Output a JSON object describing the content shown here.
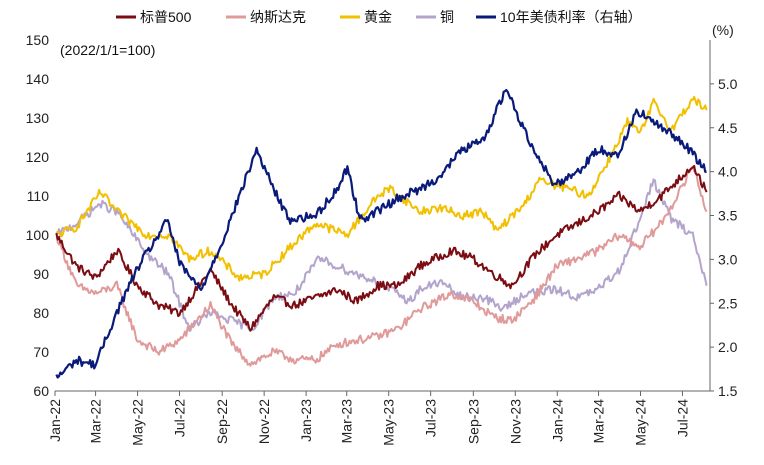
{
  "chart_data": {
    "type": "line",
    "title": "",
    "annotation": "(2022/1/1=100)",
    "y2_unit_label": "(%)",
    "x_ticks": [
      "Jan-22",
      "Mar-22",
      "May-22",
      "Jul-22",
      "Sep-22",
      "Nov-22",
      "Jan-23",
      "Mar-23",
      "May-23",
      "Jul-23",
      "Sep-23",
      "Nov-23",
      "Jan-24",
      "Mar-24",
      "May-24",
      "Jul-24"
    ],
    "y_left": {
      "min": 60,
      "max": 150,
      "ticks": [
        60,
        70,
        80,
        90,
        100,
        110,
        120,
        130,
        140,
        150
      ]
    },
    "y_right": {
      "min": 1.5,
      "max": 5.5,
      "ticks": [
        "1.5",
        "2.0",
        "2.5",
        "3.0",
        "3.5",
        "4.0",
        "4.5",
        "5.0"
      ]
    },
    "grid": false,
    "legend_position": "top",
    "series": [
      {
        "name": "标普500",
        "axis": "left",
        "color": "#7b0c12",
        "x": [
          "2022-01-03",
          "2022-02-01",
          "2022-03-01",
          "2022-04-01",
          "2022-05-01",
          "2022-06-01",
          "2022-07-01",
          "2022-08-15",
          "2022-09-15",
          "2022-10-12",
          "2022-11-15",
          "2022-12-15",
          "2023-01-15",
          "2023-02-15",
          "2023-03-15",
          "2023-04-15",
          "2023-05-15",
          "2023-06-15",
          "2023-07-31",
          "2023-08-31",
          "2023-09-30",
          "2023-10-27",
          "2023-11-30",
          "2023-12-31",
          "2024-01-31",
          "2024-02-29",
          "2024-03-31",
          "2024-04-30",
          "2024-05-31",
          "2024-06-30",
          "2024-07-16",
          "2024-08-05"
        ],
        "y": [
          100,
          92,
          89,
          96,
          87,
          82,
          80,
          91,
          82,
          76,
          84,
          82,
          84,
          86,
          83,
          87,
          87,
          92,
          96,
          94,
          90,
          87,
          95,
          100,
          103,
          106,
          110,
          106,
          110,
          115,
          118,
          111
        ]
      },
      {
        "name": "纳斯达克",
        "axis": "left",
        "color": "#e09a9a",
        "x": [
          "2022-01-03",
          "2022-02-01",
          "2022-03-01",
          "2022-04-01",
          "2022-05-01",
          "2022-06-01",
          "2022-07-01",
          "2022-08-15",
          "2022-09-15",
          "2022-10-12",
          "2022-11-15",
          "2022-12-15",
          "2023-01-15",
          "2023-02-15",
          "2023-03-15",
          "2023-04-15",
          "2023-05-15",
          "2023-06-15",
          "2023-07-31",
          "2023-08-31",
          "2023-09-30",
          "2023-10-27",
          "2023-11-30",
          "2023-12-31",
          "2024-01-31",
          "2024-02-29",
          "2024-03-31",
          "2024-04-30",
          "2024-05-31",
          "2024-06-30",
          "2024-07-16",
          "2024-08-05"
        ],
        "y": [
          100,
          87,
          85,
          87,
          73,
          70,
          73,
          82,
          72,
          67,
          70,
          68,
          68,
          72,
          73,
          74,
          76,
          81,
          85,
          83,
          79,
          78,
          84,
          92,
          94,
          96,
          100,
          97,
          103,
          112,
          118,
          106
        ]
      },
      {
        "name": "黄金",
        "axis": "left",
        "color": "#f2c000",
        "x": [
          "2022-01-03",
          "2022-02-01",
          "2022-03-08",
          "2022-04-01",
          "2022-05-15",
          "2022-06-15",
          "2022-07-15",
          "2022-08-15",
          "2022-09-26",
          "2022-11-01",
          "2022-12-15",
          "2023-01-15",
          "2023-02-15",
          "2023-03-01",
          "2023-04-15",
          "2023-05-03",
          "2023-06-15",
          "2023-07-15",
          "2023-08-15",
          "2023-09-15",
          "2023-10-05",
          "2023-11-15",
          "2023-12-04",
          "2024-01-15",
          "2024-02-15",
          "2024-03-15",
          "2024-04-12",
          "2024-05-01",
          "2024-05-20",
          "2024-06-15",
          "2024-07-16",
          "2024-08-05"
        ],
        "y": [
          100,
          102,
          111,
          106,
          100,
          100,
          94,
          96,
          89,
          90,
          98,
          103,
          101,
          100,
          110,
          112,
          106,
          107,
          105,
          106,
          101,
          108,
          114,
          112,
          110,
          119,
          129,
          126,
          134,
          127,
          135,
          132
        ]
      },
      {
        "name": "铜",
        "axis": "left",
        "color": "#b3a4cc",
        "x": [
          "2022-01-03",
          "2022-02-01",
          "2022-03-07",
          "2022-04-01",
          "2022-05-15",
          "2022-06-15",
          "2022-07-15",
          "2022-08-15",
          "2022-09-15",
          "2022-10-15",
          "2022-11-15",
          "2022-12-15",
          "2023-01-20",
          "2023-02-15",
          "2023-03-15",
          "2023-04-15",
          "2023-05-31",
          "2023-06-15",
          "2023-07-15",
          "2023-08-15",
          "2023-09-15",
          "2023-10-15",
          "2023-11-15",
          "2023-12-31",
          "2024-01-31",
          "2024-02-29",
          "2024-03-31",
          "2024-04-30",
          "2024-05-20",
          "2024-06-15",
          "2024-07-16",
          "2024-08-05"
        ],
        "y": [
          100,
          103,
          108,
          106,
          95,
          90,
          76,
          80,
          78,
          76,
          84,
          85,
          94,
          92,
          90,
          88,
          83,
          86,
          88,
          84,
          84,
          81,
          85,
          86,
          84,
          86,
          91,
          104,
          114,
          104,
          100,
          87
        ]
      },
      {
        "name": "10年美债利率（右轴）",
        "axis": "right",
        "color": "#0a1a7a",
        "x": [
          "2022-01-03",
          "2022-02-01",
          "2022-03-01",
          "2022-04-01",
          "2022-05-01",
          "2022-06-14",
          "2022-07-01",
          "2022-08-01",
          "2022-09-01",
          "2022-10-21",
          "2022-11-15",
          "2022-12-07",
          "2023-01-15",
          "2023-02-15",
          "2023-03-02",
          "2023-03-20",
          "2023-04-15",
          "2023-05-15",
          "2023-06-15",
          "2023-07-15",
          "2023-08-15",
          "2023-09-15",
          "2023-10-19",
          "2023-11-15",
          "2023-12-27",
          "2024-01-31",
          "2024-02-29",
          "2024-03-31",
          "2024-04-25",
          "2024-05-31",
          "2024-06-30",
          "2024-07-16",
          "2024-08-05"
        ],
        "y": [
          1.65,
          1.85,
          1.8,
          2.4,
          2.9,
          3.45,
          2.95,
          2.65,
          3.2,
          4.25,
          3.8,
          3.45,
          3.5,
          3.8,
          4.05,
          3.45,
          3.55,
          3.7,
          3.8,
          3.95,
          4.25,
          4.35,
          4.95,
          4.45,
          3.85,
          4.0,
          4.25,
          4.2,
          4.7,
          4.5,
          4.35,
          4.2,
          4.0
        ]
      }
    ]
  }
}
